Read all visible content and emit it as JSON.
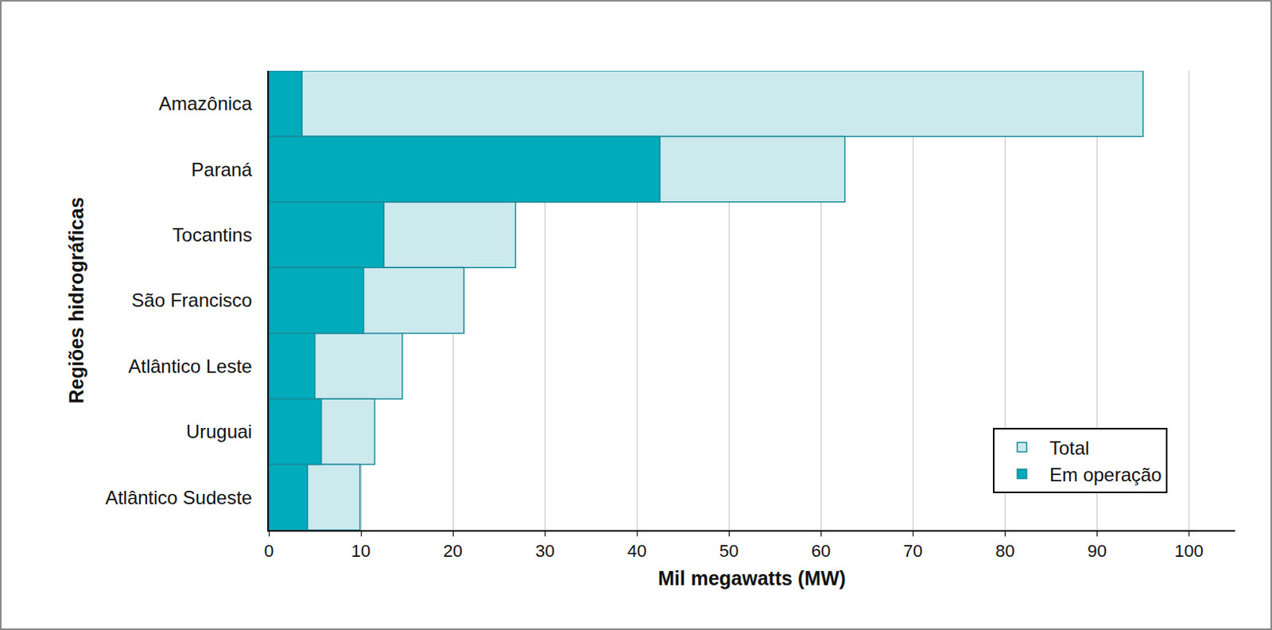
{
  "chart_data": {
    "type": "bar",
    "orientation": "horizontal",
    "categories": [
      "Amazônica",
      "Paraná",
      "Tocantins",
      "São Francisco",
      "Atlântico Leste",
      "Uruguai",
      "Atlântico Sudeste"
    ],
    "series": [
      {
        "name": "Total",
        "color": "#cce9ee",
        "values": [
          95.0,
          62.6,
          26.8,
          21.2,
          14.5,
          11.5,
          9.9
        ]
      },
      {
        "name": "Em operação",
        "color": "#00abbb",
        "values": [
          3.6,
          42.5,
          12.5,
          10.3,
          5.0,
          5.7,
          4.2
        ]
      }
    ],
    "x_label": "Mil megawatts (MW)",
    "y_label": "Regiões hidrográficas",
    "xlim": [
      0,
      105
    ],
    "xticks": [
      0,
      10,
      20,
      30,
      40,
      50,
      60,
      70,
      80,
      90,
      100
    ],
    "grid": true,
    "legend": "bottom right"
  }
}
